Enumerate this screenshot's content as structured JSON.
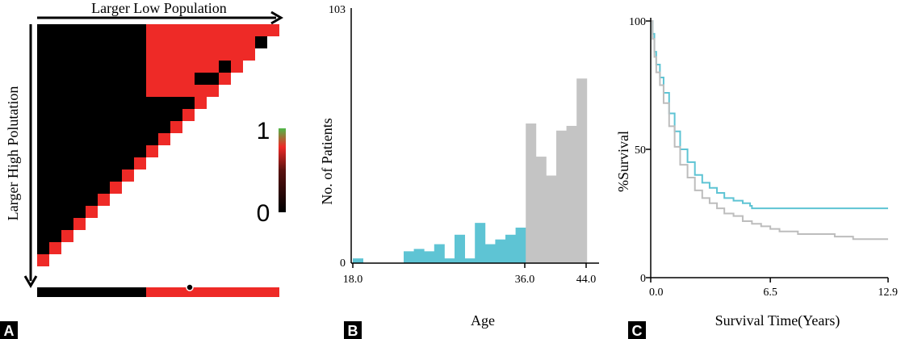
{
  "panels": {
    "a": {
      "letter": "A",
      "top_label": "Larger Low Population",
      "side_label": "Larger High Polutation",
      "scale_max": "1",
      "scale_min": "0",
      "matrix": {
        "size": 20,
        "red_rows_to": 5,
        "red_cols_from": 9,
        "bottom_bar_split": 9,
        "colors": {
          "black": "#000000",
          "red": "#ee2a27",
          "green": "#4fb848"
        }
      }
    },
    "b": {
      "letter": "B"
    },
    "c": {
      "letter": "C"
    }
  },
  "chart_data": [
    {
      "type": "heatmap",
      "title": "",
      "xlabel": "Larger Low Population",
      "ylabel": "Larger High Polutation",
      "colorbar": {
        "min": 0,
        "max": 1,
        "ticks": [
          "0",
          "1"
        ],
        "colors": [
          "#000000",
          "#ee2a27",
          "#4fb848"
        ]
      },
      "description_values": "lower triangle black (0); upper-right block and diagonal red (1)"
    },
    {
      "type": "bar",
      "xlabel": "Age",
      "ylabel": "No. of Patients",
      "xlim": [
        18.0,
        44.0
      ],
      "ylim": [
        0,
        103
      ],
      "x_ticks": [
        "18.0",
        "36.0",
        "44.0"
      ],
      "y_ticks": [
        "0",
        "103"
      ],
      "colors": {
        "below_cutoff": "#5ec4d4",
        "above_cutoff": "#c4c4c4"
      },
      "cutoff": 36.0,
      "bins": [
        {
          "age": 18,
          "value": 2
        },
        {
          "age": 19,
          "value": 0
        },
        {
          "age": 20,
          "value": 0
        },
        {
          "age": 21,
          "value": 0
        },
        {
          "age": 22,
          "value": 0
        },
        {
          "age": 23,
          "value": 5
        },
        {
          "age": 24,
          "value": 6
        },
        {
          "age": 25,
          "value": 5
        },
        {
          "age": 26,
          "value": 8
        },
        {
          "age": 27,
          "value": 2
        },
        {
          "age": 28,
          "value": 12
        },
        {
          "age": 29,
          "value": 2
        },
        {
          "age": 30,
          "value": 17
        },
        {
          "age": 31,
          "value": 8
        },
        {
          "age": 32,
          "value": 10
        },
        {
          "age": 33,
          "value": 12
        },
        {
          "age": 34,
          "value": 15
        },
        {
          "age": 35,
          "value": 59
        },
        {
          "age": 36,
          "value": 45
        },
        {
          "age": 37,
          "value": 37
        },
        {
          "age": 38,
          "value": 56
        },
        {
          "age": 39,
          "value": 58
        },
        {
          "age": 40,
          "value": 78
        }
      ]
    },
    {
      "type": "line",
      "xlabel": "Survival Time(Years)",
      "ylabel": "%Survival",
      "xlim": [
        0.0,
        12.9
      ],
      "ylim": [
        0,
        100
      ],
      "x_ticks": [
        "0.0",
        "6.5",
        "12.9"
      ],
      "y_ticks": [
        "0",
        "50",
        "100"
      ],
      "series": [
        {
          "color": "#5ec4d4",
          "points": [
            [
              0.0,
              100
            ],
            [
              0.1,
              95
            ],
            [
              0.2,
              88
            ],
            [
              0.3,
              83
            ],
            [
              0.5,
              78
            ],
            [
              0.7,
              72
            ],
            [
              1.0,
              64
            ],
            [
              1.3,
              57
            ],
            [
              1.6,
              50
            ],
            [
              2.0,
              45
            ],
            [
              2.4,
              40
            ],
            [
              2.8,
              37
            ],
            [
              3.2,
              35
            ],
            [
              3.6,
              33
            ],
            [
              4.0,
              31
            ],
            [
              4.5,
              30
            ],
            [
              5.0,
              29
            ],
            [
              5.4,
              28
            ],
            [
              5.5,
              27
            ],
            [
              7.0,
              27
            ],
            [
              9.0,
              27
            ],
            [
              11.0,
              27
            ],
            [
              12.9,
              27
            ]
          ]
        },
        {
          "color": "#bdbdbd",
          "points": [
            [
              0.0,
              100
            ],
            [
              0.1,
              93
            ],
            [
              0.2,
              86
            ],
            [
              0.3,
              80
            ],
            [
              0.5,
              75
            ],
            [
              0.7,
              68
            ],
            [
              1.0,
              59
            ],
            [
              1.3,
              51
            ],
            [
              1.6,
              44
            ],
            [
              2.0,
              39
            ],
            [
              2.4,
              34
            ],
            [
              2.8,
              31
            ],
            [
              3.2,
              29
            ],
            [
              3.6,
              27
            ],
            [
              4.0,
              25
            ],
            [
              4.5,
              24
            ],
            [
              5.0,
              22
            ],
            [
              5.5,
              21
            ],
            [
              6.0,
              20
            ],
            [
              6.5,
              19
            ],
            [
              7.0,
              18
            ],
            [
              8.0,
              17
            ],
            [
              9.0,
              17
            ],
            [
              10.0,
              16
            ],
            [
              11.0,
              15
            ],
            [
              12.0,
              15
            ],
            [
              12.9,
              15
            ]
          ]
        }
      ]
    }
  ]
}
